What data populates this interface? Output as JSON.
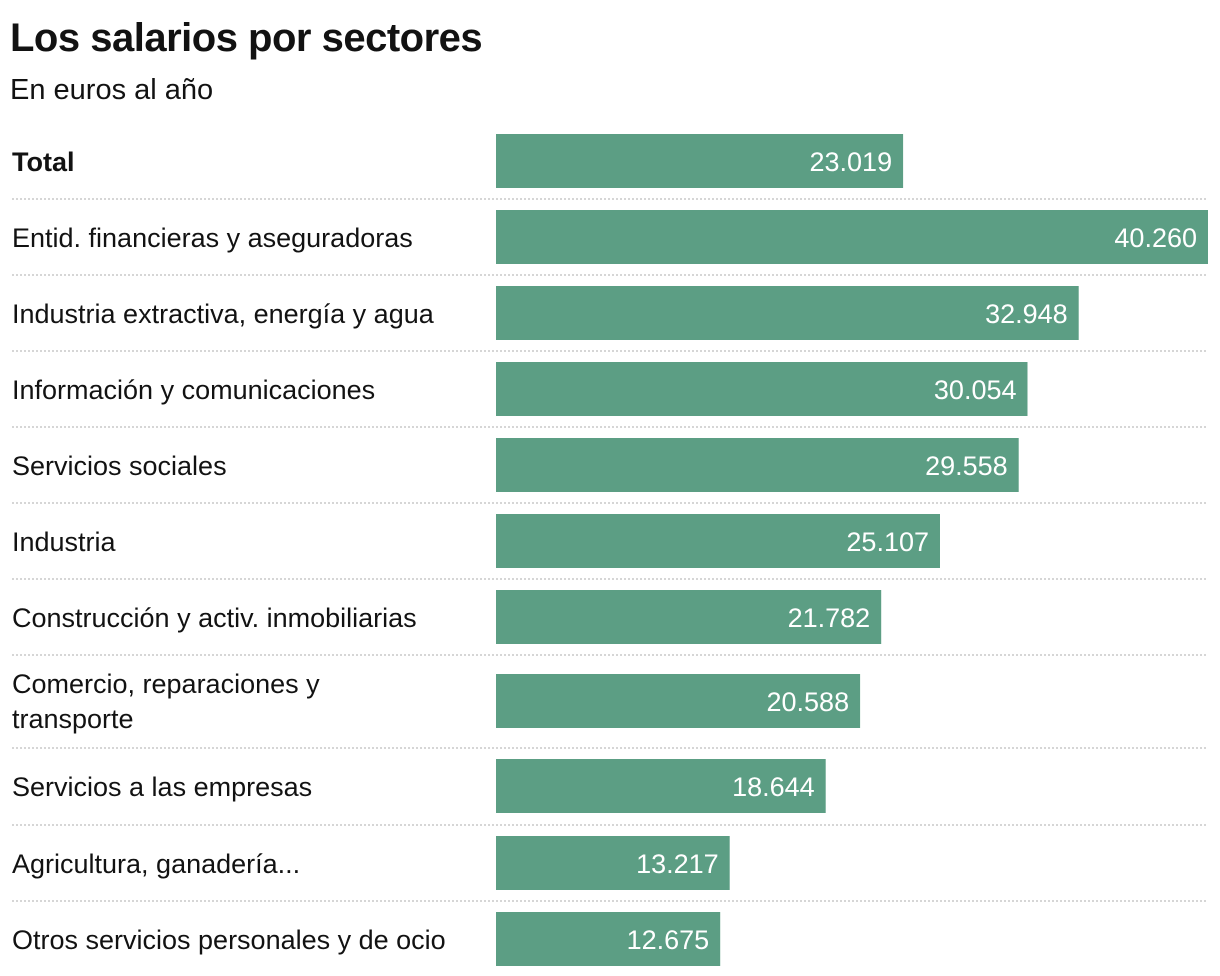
{
  "chart_data": {
    "type": "bar",
    "orientation": "horizontal",
    "title": "Los salarios por sectores",
    "subtitle": "En euros al año",
    "categories": [
      "Total",
      "Entid. financieras y aseguradoras",
      "Industria extractiva, energía y agua",
      "Información y comunicaciones",
      "Servicios sociales",
      "Industria",
      "Construcción y activ. inmobiliarias",
      "Comercio, reparaciones y transporte",
      "Servicios a las empresas",
      "Agricultura, ganadería...",
      "Otros servicios personales y de ocio"
    ],
    "values": [
      23019,
      40260,
      32948,
      30054,
      29558,
      25107,
      21782,
      20588,
      18644,
      13217,
      12675
    ],
    "value_labels": [
      "23.019",
      "40.260",
      "32.948",
      "30.054",
      "29.558",
      "25.107",
      "21.782",
      "20.588",
      "18.644",
      "13.217",
      "12.675"
    ],
    "xlim": [
      0,
      40260
    ],
    "grid": false,
    "bar_color": "#5c9e84",
    "separator_color": "#c8c8c8"
  }
}
